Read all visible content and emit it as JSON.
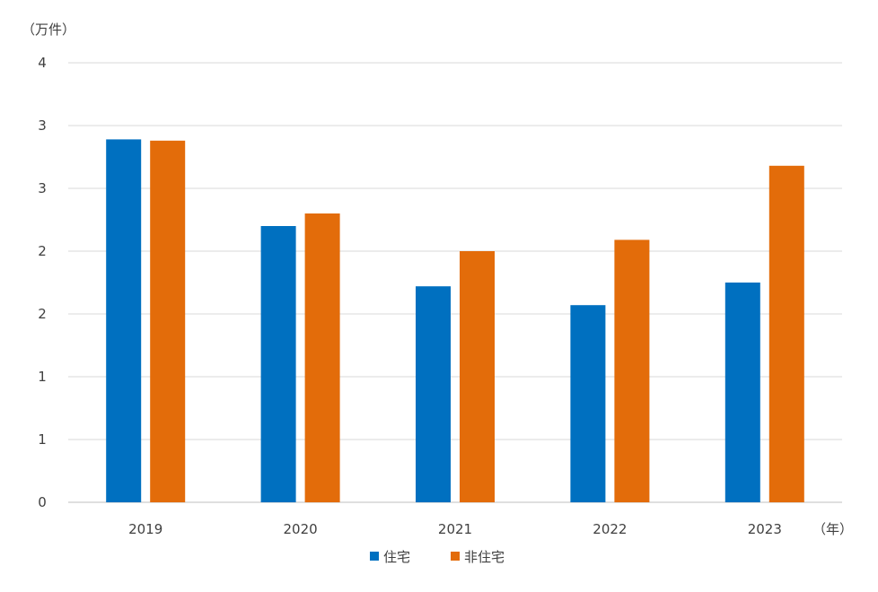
{
  "chart_data": {
    "type": "bar",
    "title": "",
    "y_unit_label": "（万件）",
    "x_unit_label": "（年）",
    "categories": [
      "2019",
      "2020",
      "2021",
      "2022",
      "2023"
    ],
    "y_tick_labels": [
      "0",
      "1",
      "1",
      "2",
      "2",
      "3",
      "3",
      "4"
    ],
    "ylim": [
      0,
      3.5
    ],
    "grid": true,
    "legend_position": "bottom",
    "series": [
      {
        "name": "住宅",
        "color": "#0070C0",
        "values": [
          2.89,
          2.2,
          1.72,
          1.57,
          1.75
        ]
      },
      {
        "name": "非住宅",
        "color": "#E36C0A",
        "values": [
          2.88,
          2.3,
          2.0,
          2.09,
          2.68
        ]
      }
    ]
  }
}
